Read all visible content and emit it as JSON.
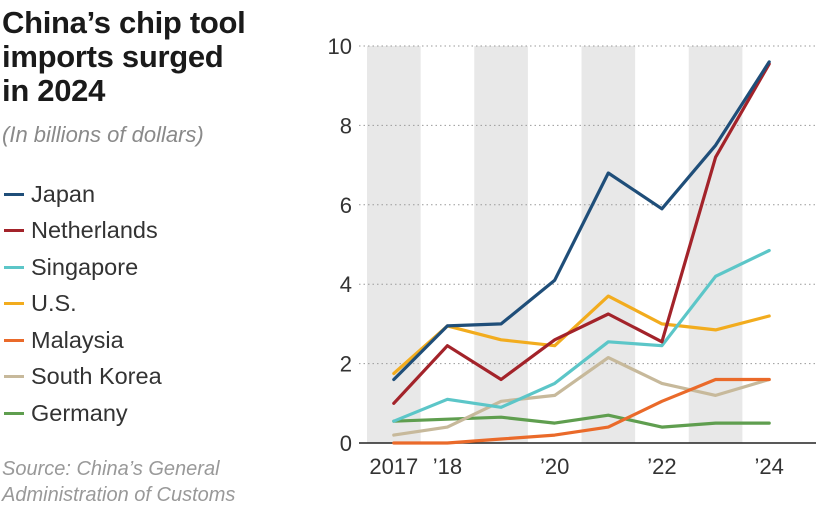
{
  "title_lines": [
    "China’s chip tool",
    "imports surged",
    "in 2024"
  ],
  "subtitle": "(In billions of dollars)",
  "source_lines": [
    "Source: China’s General",
    "Administration of Customs"
  ],
  "chart_data": {
    "type": "line",
    "x": [
      2017,
      2018,
      2019,
      2020,
      2021,
      2022,
      2023,
      2024
    ],
    "x_tick_labels": [
      {
        "x": 2017,
        "label": "2017"
      },
      {
        "x": 2018,
        "label": "’18"
      },
      {
        "x": 2020,
        "label": "’20"
      },
      {
        "x": 2022,
        "label": "’22"
      },
      {
        "x": 2024,
        "label": "’24"
      }
    ],
    "y_ticks": [
      0,
      2,
      4,
      6,
      8,
      10
    ],
    "ylim": [
      0,
      10
    ],
    "shaded_years": [
      2017,
      2019,
      2021,
      2023
    ],
    "grid": "horizontal dotted",
    "legend_placement": "left",
    "series": [
      {
        "name": "Japan",
        "color": "#1f4e79",
        "values": [
          1.6,
          2.95,
          3.0,
          4.1,
          6.8,
          5.9,
          7.5,
          9.6
        ]
      },
      {
        "name": "Netherlands",
        "color": "#a3232a",
        "values": [
          1.0,
          2.45,
          1.6,
          2.6,
          3.25,
          2.55,
          7.2,
          9.55
        ]
      },
      {
        "name": "Singapore",
        "color": "#5cc6c8",
        "values": [
          0.55,
          1.1,
          0.9,
          1.5,
          2.55,
          2.45,
          4.2,
          4.85
        ]
      },
      {
        "name": "U.S.",
        "color": "#f2ac1e",
        "values": [
          1.75,
          2.95,
          2.6,
          2.45,
          3.7,
          3.0,
          2.85,
          3.2
        ]
      },
      {
        "name": "Malaysia",
        "color": "#ea6a2a",
        "values": [
          0.0,
          0.0,
          0.1,
          0.2,
          0.4,
          1.05,
          1.6,
          1.6
        ]
      },
      {
        "name": "South Korea",
        "color": "#c7b99b",
        "values": [
          0.2,
          0.4,
          1.05,
          1.2,
          2.15,
          1.5,
          1.2,
          1.6
        ]
      },
      {
        "name": "Germany",
        "color": "#5f9e4f",
        "values": [
          0.55,
          0.6,
          0.65,
          0.5,
          0.7,
          0.4,
          0.5,
          0.5
        ]
      }
    ]
  }
}
